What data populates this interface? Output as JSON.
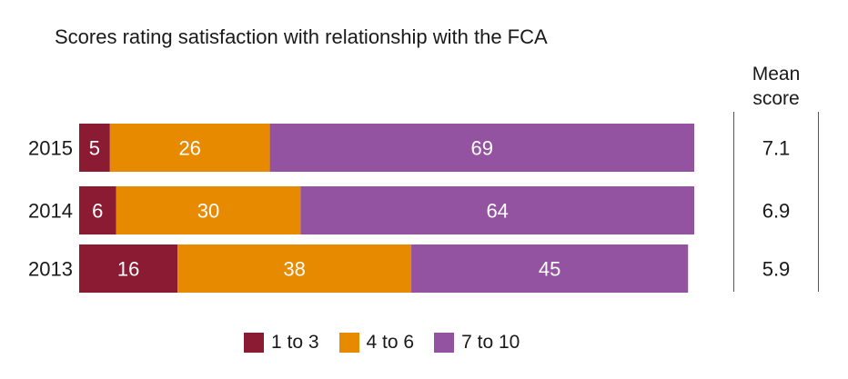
{
  "chart_data": {
    "type": "bar",
    "orientation": "horizontal",
    "stacked": true,
    "title": "Scores rating satisfaction with relationship with the FCA",
    "categories": [
      "2015",
      "2014",
      "2013"
    ],
    "series": [
      {
        "name": "1 to 3",
        "color": "#8b1a33",
        "values": [
          5,
          6,
          16
        ]
      },
      {
        "name": "4 to 6",
        "color": "#e88a00",
        "values": [
          26,
          30,
          38
        ]
      },
      {
        "name": "7 to 10",
        "color": "#9353a0",
        "values": [
          69,
          64,
          45
        ]
      }
    ],
    "xlim": [
      0,
      100
    ],
    "mean_score": {
      "label": "Mean score",
      "values": [
        "7.1",
        "6.9",
        "5.9"
      ]
    },
    "legend_position": "bottom"
  }
}
